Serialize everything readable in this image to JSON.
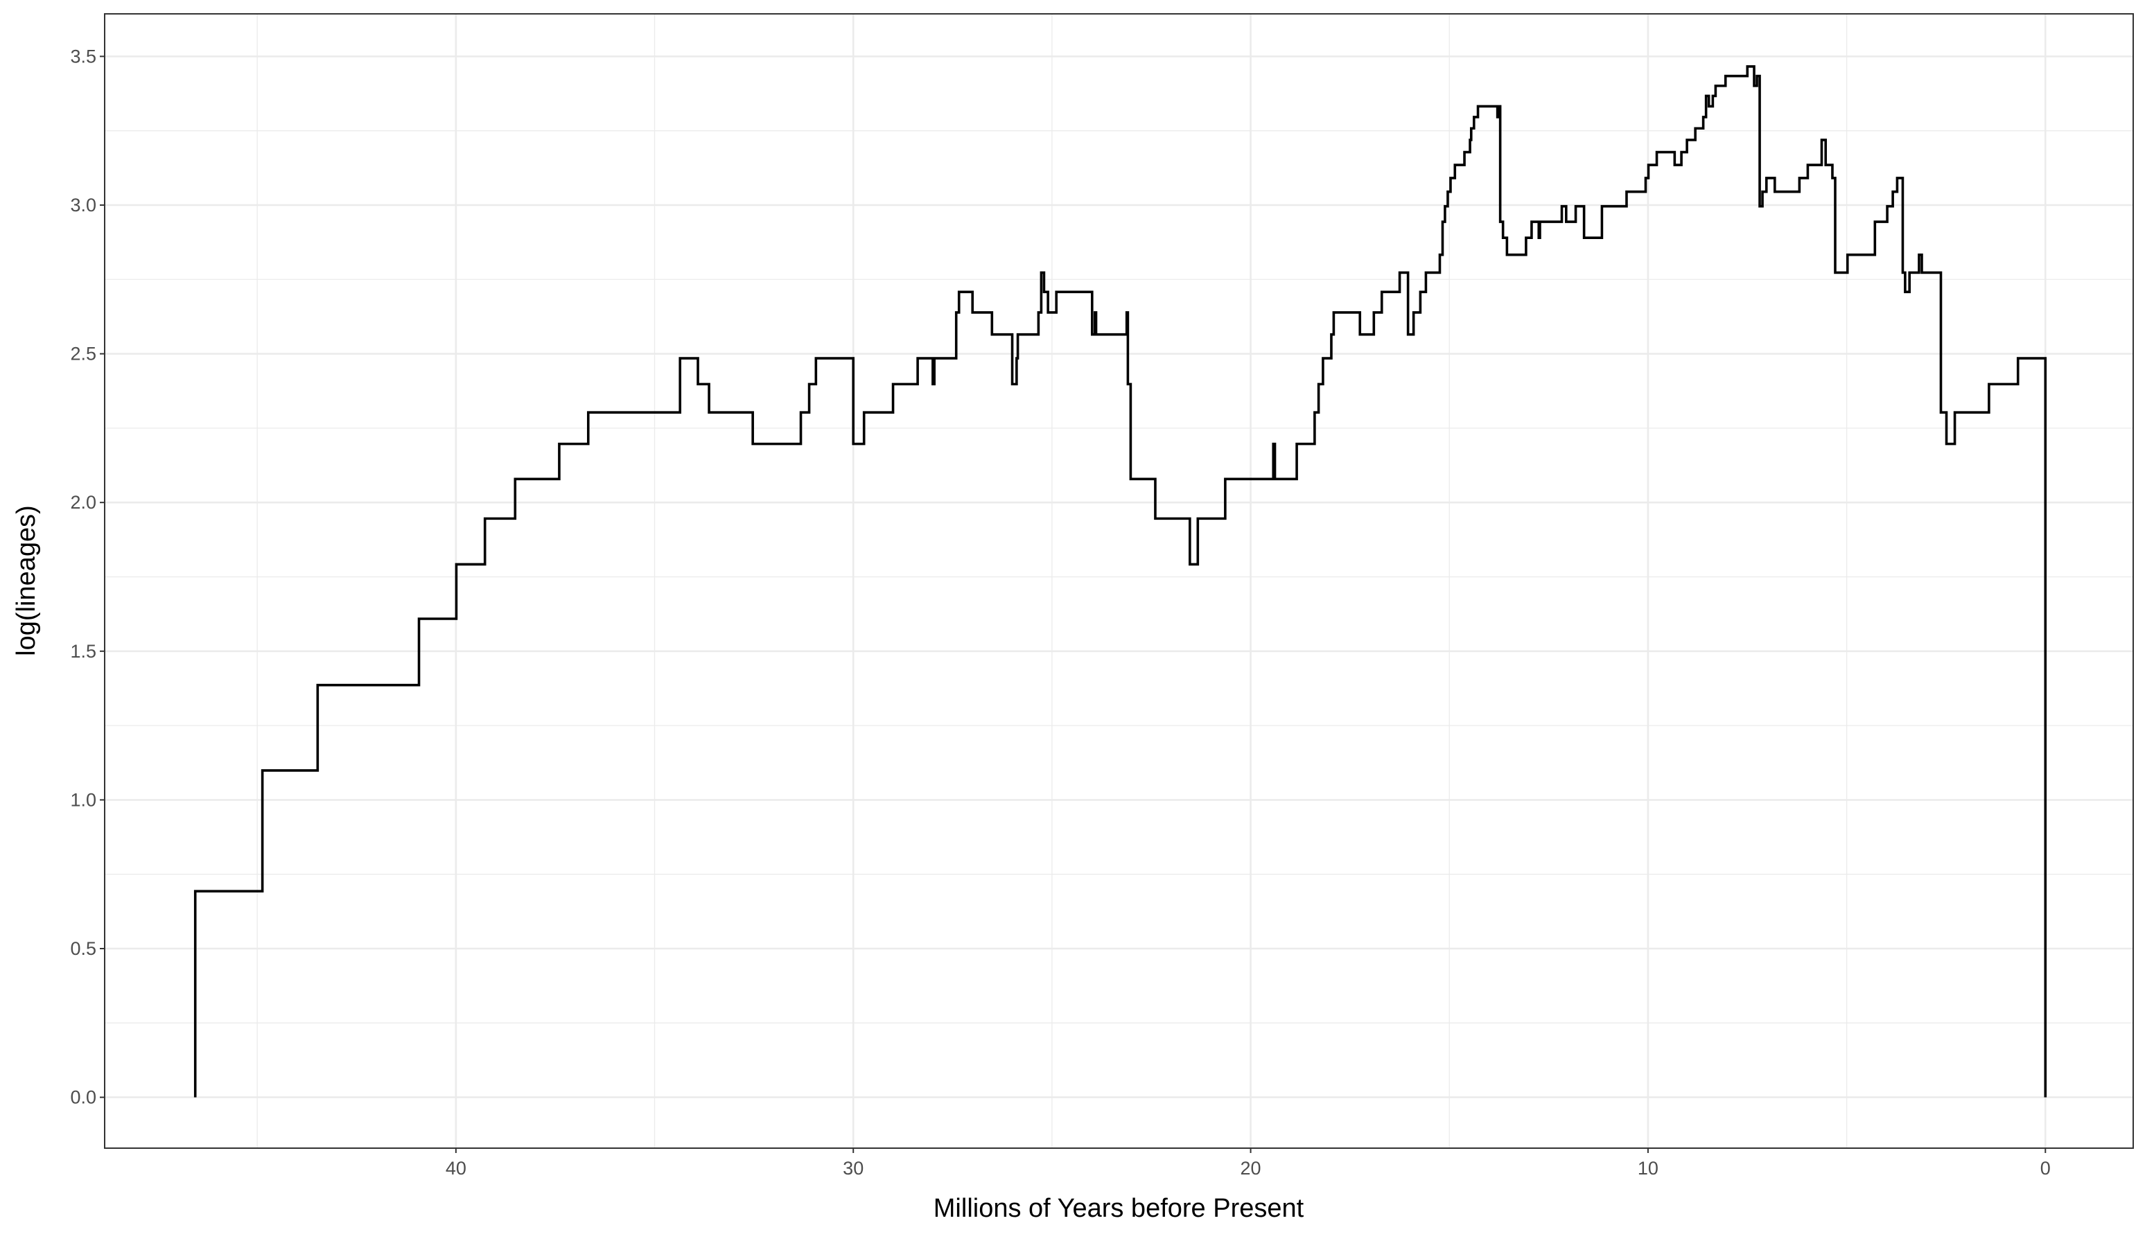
{
  "chart_data": {
    "type": "step",
    "xlabel": "Millions of Years before Present",
    "ylabel": "log(lineages)",
    "x": [
      46.56,
      46.56,
      44.87,
      43.48,
      40.93,
      39.99,
      39.27,
      38.51,
      37.4,
      36.67,
      34.36,
      33.91,
      33.63,
      32.53,
      31.32,
      31.11,
      30.94,
      30.0,
      29.73,
      29.0,
      28.38,
      28.0,
      27.96,
      27.41,
      27.34,
      27.0,
      26.51,
      26.0,
      25.89,
      25.86,
      25.34,
      25.27,
      25.2,
      25.1,
      24.89,
      23.99,
      23.92,
      23.89,
      23.12,
      23.09,
      23.02,
      22.4,
      21.53,
      21.33,
      20.64,
      19.43,
      19.39,
      18.84,
      18.39,
      18.29,
      18.18,
      17.97,
      17.91,
      17.25,
      16.9,
      16.7,
      16.25,
      16.04,
      15.9,
      15.73,
      15.59,
      15.24,
      15.17,
      15.11,
      15.04,
      14.97,
      14.86,
      14.62,
      14.48,
      14.45,
      14.38,
      14.28,
      13.79,
      13.76,
      13.72,
      13.65,
      13.55,
      13.07,
      12.93,
      12.75,
      12.72,
      12.17,
      12.06,
      11.82,
      11.61,
      11.16,
      10.54,
      10.06,
      9.99,
      9.78,
      9.33,
      9.16,
      9.02,
      8.81,
      8.61,
      8.54,
      8.47,
      8.37,
      8.3,
      8.05,
      7.5,
      7.33,
      7.26,
      7.19,
      7.12,
      7.02,
      6.81,
      6.19,
      5.98,
      5.63,
      5.53,
      5.36,
      5.29,
      4.98,
      4.29,
      3.98,
      3.84,
      3.73,
      3.59,
      3.53,
      3.42,
      3.18,
      3.11,
      2.63,
      2.49,
      2.28,
      1.42,
      0.69,
      0.0
    ],
    "values": [
      0,
      0.693,
      1.099,
      1.386,
      1.609,
      1.792,
      1.946,
      2.079,
      2.197,
      2.303,
      2.485,
      2.398,
      2.303,
      2.197,
      2.303,
      2.398,
      2.485,
      2.197,
      2.303,
      2.398,
      2.485,
      2.398,
      2.485,
      2.639,
      2.708,
      2.639,
      2.565,
      2.398,
      2.485,
      2.565,
      2.639,
      2.773,
      2.708,
      2.639,
      2.708,
      2.565,
      2.639,
      2.565,
      2.639,
      2.398,
      2.079,
      1.946,
      1.792,
      1.946,
      2.079,
      2.197,
      2.079,
      2.197,
      2.303,
      2.398,
      2.485,
      2.565,
      2.639,
      2.565,
      2.639,
      2.708,
      2.773,
      2.565,
      2.639,
      2.708,
      2.773,
      2.833,
      2.944,
      2.996,
      3.045,
      3.091,
      3.135,
      3.178,
      3.219,
      3.258,
      3.296,
      3.332,
      3.296,
      3.332,
      2.944,
      2.89,
      2.833,
      2.89,
      2.944,
      2.89,
      2.944,
      2.996,
      2.944,
      2.996,
      2.89,
      2.996,
      3.045,
      3.091,
      3.135,
      3.178,
      3.135,
      3.178,
      3.219,
      3.258,
      3.296,
      3.367,
      3.332,
      3.367,
      3.401,
      3.434,
      3.466,
      3.401,
      3.434,
      2.996,
      3.045,
      3.091,
      3.045,
      3.091,
      3.135,
      3.219,
      3.135,
      3.091,
      2.773,
      2.833,
      2.944,
      2.996,
      3.045,
      3.091,
      2.773,
      2.708,
      2.773,
      2.833,
      2.773,
      2.303,
      2.197,
      2.303,
      2.398,
      2.485,
      0
    ],
    "color": "#000000",
    "xlim": [
      48.84,
      -2.21
    ],
    "xticks": [
      40,
      30,
      20,
      10,
      0
    ],
    "ylim": [
      -0.171,
      3.643
    ],
    "yticks": [
      {
        "value": 0,
        "label": "0.0"
      },
      0.5,
      {
        "value": 1,
        "label": "1.0"
      },
      1.5,
      {
        "value": 2,
        "label": "2.0"
      },
      2.5,
      {
        "value": 3,
        "label": "3.0"
      },
      3.5
    ],
    "grid": true
  }
}
